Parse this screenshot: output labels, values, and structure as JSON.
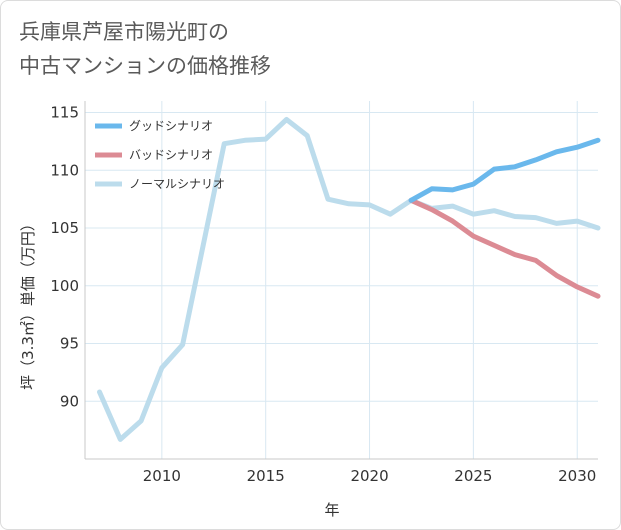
{
  "title_line1": "兵庫県芦屋市陽光町の",
  "title_line2": "中古マンションの価格推移",
  "chart_data": {
    "type": "line",
    "xlabel": "年",
    "ylabel": "坪（3.3㎡）単価（万円）",
    "xlim": [
      2006.3,
      2031
    ],
    "ylim": [
      85,
      116
    ],
    "xticks": [
      2010,
      2015,
      2020,
      2025,
      2030
    ],
    "yticks": [
      90,
      95,
      100,
      105,
      110,
      115
    ],
    "grid": true,
    "legend_position": "top-left",
    "series": [
      {
        "name": "グッドシナリオ",
        "color": "#6ab8ec",
        "x": [
          2022,
          2023,
          2024,
          2025,
          2026,
          2027,
          2028,
          2029,
          2030,
          2031
        ],
        "y": [
          107.4,
          108.4,
          108.3,
          108.8,
          110.1,
          110.3,
          110.9,
          111.6,
          112.0,
          112.6
        ]
      },
      {
        "name": "バッドシナリオ",
        "color": "#dc8b94",
        "x": [
          2022,
          2023,
          2024,
          2025,
          2026,
          2027,
          2028,
          2029,
          2030,
          2031
        ],
        "y": [
          107.4,
          106.6,
          105.6,
          104.3,
          103.5,
          102.7,
          102.2,
          100.9,
          99.9,
          99.1
        ]
      },
      {
        "name": "ノーマルシナリオ",
        "color": "#bcdcec",
        "x": [
          2007,
          2008,
          2009,
          2010,
          2011,
          2012,
          2013,
          2014,
          2015,
          2016,
          2017,
          2018,
          2019,
          2020,
          2021,
          2022,
          2023,
          2024,
          2025,
          2026,
          2027,
          2028,
          2029,
          2030,
          2031
        ],
        "y": [
          90.8,
          86.7,
          88.3,
          92.9,
          94.9,
          103.6,
          112.3,
          112.6,
          112.7,
          114.4,
          113.0,
          107.5,
          107.1,
          107.0,
          106.2,
          107.4,
          106.7,
          106.9,
          106.2,
          106.5,
          106.0,
          105.9,
          105.4,
          105.6,
          105.0
        ]
      }
    ]
  }
}
